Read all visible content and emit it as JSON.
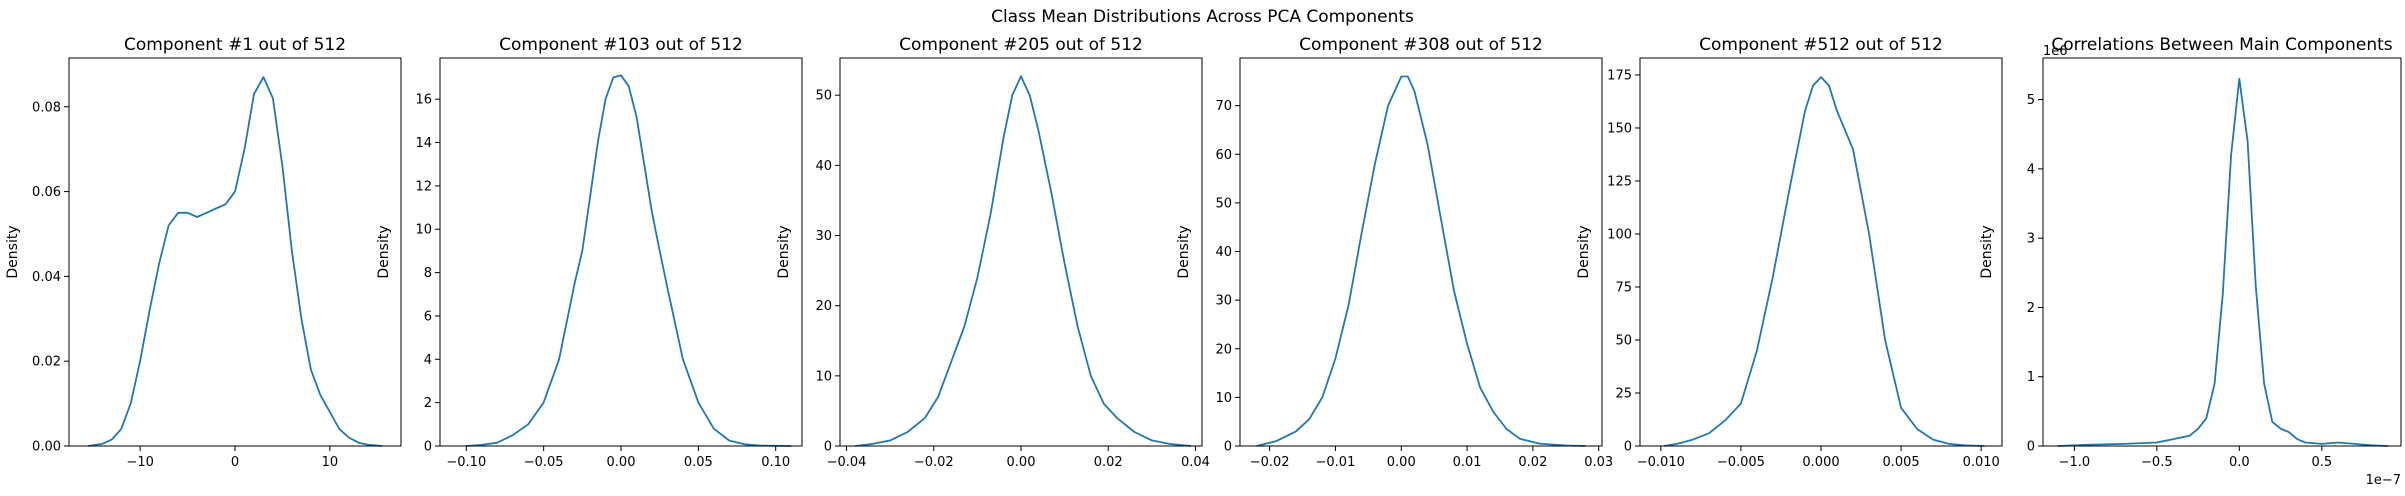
{
  "figure": {
    "suptitle": "Class Mean Distributions Across PCA Components"
  },
  "style": {
    "line_color": "#1f77b4",
    "axis_color": "#000000",
    "background": "#ffffff"
  },
  "chart_data": [
    {
      "type": "line",
      "title": "Component #1 out of 512",
      "xlabel": "",
      "ylabel": "Density",
      "xlim": [
        -17.5,
        17.5
      ],
      "ylim": [
        0,
        0.0915
      ],
      "xticks": [
        -10,
        0,
        10
      ],
      "xtick_labels": [
        "−10",
        "0",
        "10"
      ],
      "yticks": [
        0,
        0.02,
        0.04,
        0.06,
        0.08
      ],
      "ytick_labels": [
        "0.00",
        "0.02",
        "0.04",
        "0.06",
        "0.08"
      ],
      "offset_label": "",
      "series": [
        {
          "x": [
            -15.5,
            -14,
            -13,
            -12,
            -11,
            -10,
            -9,
            -8,
            -7,
            -6,
            -5,
            -4,
            -3,
            -2,
            -1,
            0,
            1,
            2,
            3,
            4,
            5,
            6,
            7,
            8,
            9,
            10,
            11,
            12,
            13,
            14,
            15.5
          ],
          "y": [
            0.0,
            0.0005,
            0.0015,
            0.004,
            0.01,
            0.02,
            0.032,
            0.043,
            0.052,
            0.055,
            0.055,
            0.054,
            0.055,
            0.056,
            0.057,
            0.06,
            0.07,
            0.083,
            0.087,
            0.082,
            0.066,
            0.046,
            0.03,
            0.018,
            0.012,
            0.008,
            0.004,
            0.002,
            0.0008,
            0.0003,
            0.0
          ]
        }
      ]
    },
    {
      "type": "line",
      "title": "Component #103 out of 512",
      "xlabel": "",
      "ylabel": "Density",
      "xlim": [
        -0.117,
        0.117
      ],
      "ylim": [
        0,
        17.9
      ],
      "xticks": [
        -0.1,
        -0.05,
        0,
        0.05,
        0.1
      ],
      "xtick_labels": [
        "−0.10",
        "−0.05",
        "0.00",
        "0.05",
        "0.10"
      ],
      "yticks": [
        0,
        2,
        4,
        6,
        8,
        10,
        12,
        14,
        16
      ],
      "ytick_labels": [
        "0",
        "2",
        "4",
        "6",
        "8",
        "10",
        "12",
        "14",
        "16"
      ],
      "offset_label": "",
      "series": [
        {
          "x": [
            -0.1,
            -0.09,
            -0.08,
            -0.07,
            -0.06,
            -0.05,
            -0.04,
            -0.03,
            -0.025,
            -0.02,
            -0.015,
            -0.01,
            -0.005,
            0,
            0.005,
            0.01,
            0.015,
            0.02,
            0.025,
            0.03,
            0.04,
            0.05,
            0.06,
            0.07,
            0.08,
            0.09,
            0.11
          ],
          "y": [
            0.0,
            0.05,
            0.15,
            0.5,
            1.0,
            2.0,
            4.0,
            7.5,
            9.0,
            11.5,
            14.0,
            16.0,
            17.0,
            17.1,
            16.6,
            15.2,
            13.0,
            10.8,
            9.0,
            7.3,
            4.0,
            2.0,
            0.8,
            0.25,
            0.08,
            0.02,
            0.0
          ]
        }
      ]
    },
    {
      "type": "line",
      "title": "Component #205 out of 512",
      "xlabel": "",
      "ylabel": "Density",
      "xlim": [
        -0.0415,
        0.0415
      ],
      "ylim": [
        0,
        55.3
      ],
      "xticks": [
        -0.04,
        -0.02,
        0,
        0.02,
        0.04
      ],
      "xtick_labels": [
        "−0.04",
        "−0.02",
        "0.00",
        "0.02",
        "0.04"
      ],
      "yticks": [
        0,
        10,
        20,
        30,
        40,
        50
      ],
      "ytick_labels": [
        "0",
        "10",
        "20",
        "30",
        "40",
        "50"
      ],
      "offset_label": "",
      "series": [
        {
          "x": [
            -0.038,
            -0.034,
            -0.03,
            -0.026,
            -0.022,
            -0.019,
            -0.016,
            -0.013,
            -0.01,
            -0.007,
            -0.004,
            -0.002,
            0,
            0.002,
            0.004,
            0.007,
            0.01,
            0.013,
            0.016,
            0.019,
            0.022,
            0.026,
            0.03,
            0.034,
            0.039
          ],
          "y": [
            0.0,
            0.3,
            0.8,
            2.0,
            4.0,
            7.0,
            12.0,
            17.0,
            24.0,
            33.0,
            44.0,
            50.0,
            52.7,
            50.0,
            45.0,
            36.0,
            26.0,
            17.0,
            10.0,
            6.0,
            4.0,
            2.0,
            0.8,
            0.3,
            0.0
          ]
        }
      ]
    },
    {
      "type": "line",
      "title": "Component #308 out of 512",
      "xlabel": "",
      "ylabel": "Density",
      "xlim": [
        -0.0245,
        0.0305
      ],
      "ylim": [
        0,
        79.8
      ],
      "xticks": [
        -0.02,
        -0.01,
        0,
        0.01,
        0.02,
        0.03
      ],
      "xtick_labels": [
        "−0.02",
        "−0.01",
        "0.00",
        "0.01",
        "0.02",
        "0.03"
      ],
      "yticks": [
        0,
        10,
        20,
        30,
        40,
        50,
        60,
        70
      ],
      "ytick_labels": [
        "0",
        "10",
        "20",
        "30",
        "40",
        "50",
        "60",
        "70"
      ],
      "offset_label": "",
      "series": [
        {
          "x": [
            -0.022,
            -0.019,
            -0.016,
            -0.014,
            -0.012,
            -0.01,
            -0.008,
            -0.006,
            -0.004,
            -0.002,
            -0.001,
            0,
            0.001,
            0.002,
            0.004,
            0.006,
            0.008,
            0.01,
            0.012,
            0.014,
            0.016,
            0.018,
            0.021,
            0.025,
            0.028
          ],
          "y": [
            0.0,
            1.0,
            3.0,
            5.5,
            10.0,
            18.0,
            29.0,
            44.0,
            58.0,
            70.0,
            73.0,
            76.0,
            76.0,
            73.0,
            62.0,
            47.0,
            32.0,
            21.0,
            12.0,
            7.0,
            3.5,
            1.5,
            0.5,
            0.1,
            0.0
          ]
        }
      ]
    },
    {
      "type": "line",
      "title": "Component #512 out of 512",
      "xlabel": "",
      "ylabel": "Density",
      "xlim": [
        -0.0113,
        0.0113
      ],
      "ylim": [
        0,
        183
      ],
      "xticks": [
        -0.01,
        -0.005,
        0,
        0.005,
        0.01
      ],
      "xtick_labels": [
        "−0.010",
        "−0.005",
        "0.000",
        "0.005",
        "0.010"
      ],
      "yticks": [
        0,
        25,
        50,
        75,
        100,
        125,
        150,
        175
      ],
      "ytick_labels": [
        "0",
        "25",
        "50",
        "75",
        "100",
        "125",
        "150",
        "175"
      ],
      "offset_label": "",
      "series": [
        {
          "x": [
            -0.0098,
            -0.009,
            -0.008,
            -0.007,
            -0.006,
            -0.005,
            -0.004,
            -0.003,
            -0.002,
            -0.001,
            -0.0005,
            0,
            0.0005,
            0.001,
            0.002,
            0.003,
            0.004,
            0.005,
            0.006,
            0.007,
            0.008,
            0.009,
            0.0102
          ],
          "y": [
            0.0,
            1.0,
            3.0,
            6.0,
            12.0,
            20.0,
            45.0,
            80.0,
            120.0,
            158.0,
            170.0,
            174.0,
            170.0,
            158.0,
            140.0,
            100.0,
            50.0,
            18.0,
            8.0,
            3.0,
            1.0,
            0.3,
            0.0
          ]
        }
      ]
    },
    {
      "type": "line",
      "title": "Correlations Between Main Components",
      "xlabel": "",
      "ylabel": "Density",
      "xlim": [
        -1.19,
        0.98
      ],
      "ylim": [
        0,
        5.6
      ],
      "xticks": [
        -1.0,
        -0.5,
        0,
        0.5
      ],
      "xtick_labels": [
        "−1.0",
        "−0.5",
        "0.0",
        "0.5"
      ],
      "yticks": [
        0,
        1,
        2,
        3,
        4,
        5
      ],
      "ytick_labels": [
        "0",
        "1",
        "2",
        "3",
        "4",
        "5"
      ],
      "offset_label": "1e−7",
      "y_offset_label": "1e6",
      "series": [
        {
          "x": [
            -1.1,
            -0.9,
            -0.7,
            -0.5,
            -0.4,
            -0.3,
            -0.25,
            -0.2,
            -0.15,
            -0.1,
            -0.05,
            0,
            0.05,
            0.1,
            0.15,
            0.2,
            0.25,
            0.3,
            0.35,
            0.4,
            0.5,
            0.6,
            0.7,
            0.8,
            0.9
          ],
          "y": [
            0.0,
            0.02,
            0.03,
            0.05,
            0.1,
            0.15,
            0.25,
            0.4,
            0.9,
            2.2,
            4.2,
            5.3,
            4.4,
            2.3,
            0.9,
            0.35,
            0.25,
            0.2,
            0.1,
            0.05,
            0.03,
            0.05,
            0.03,
            0.01,
            0.0
          ]
        }
      ]
    }
  ]
}
